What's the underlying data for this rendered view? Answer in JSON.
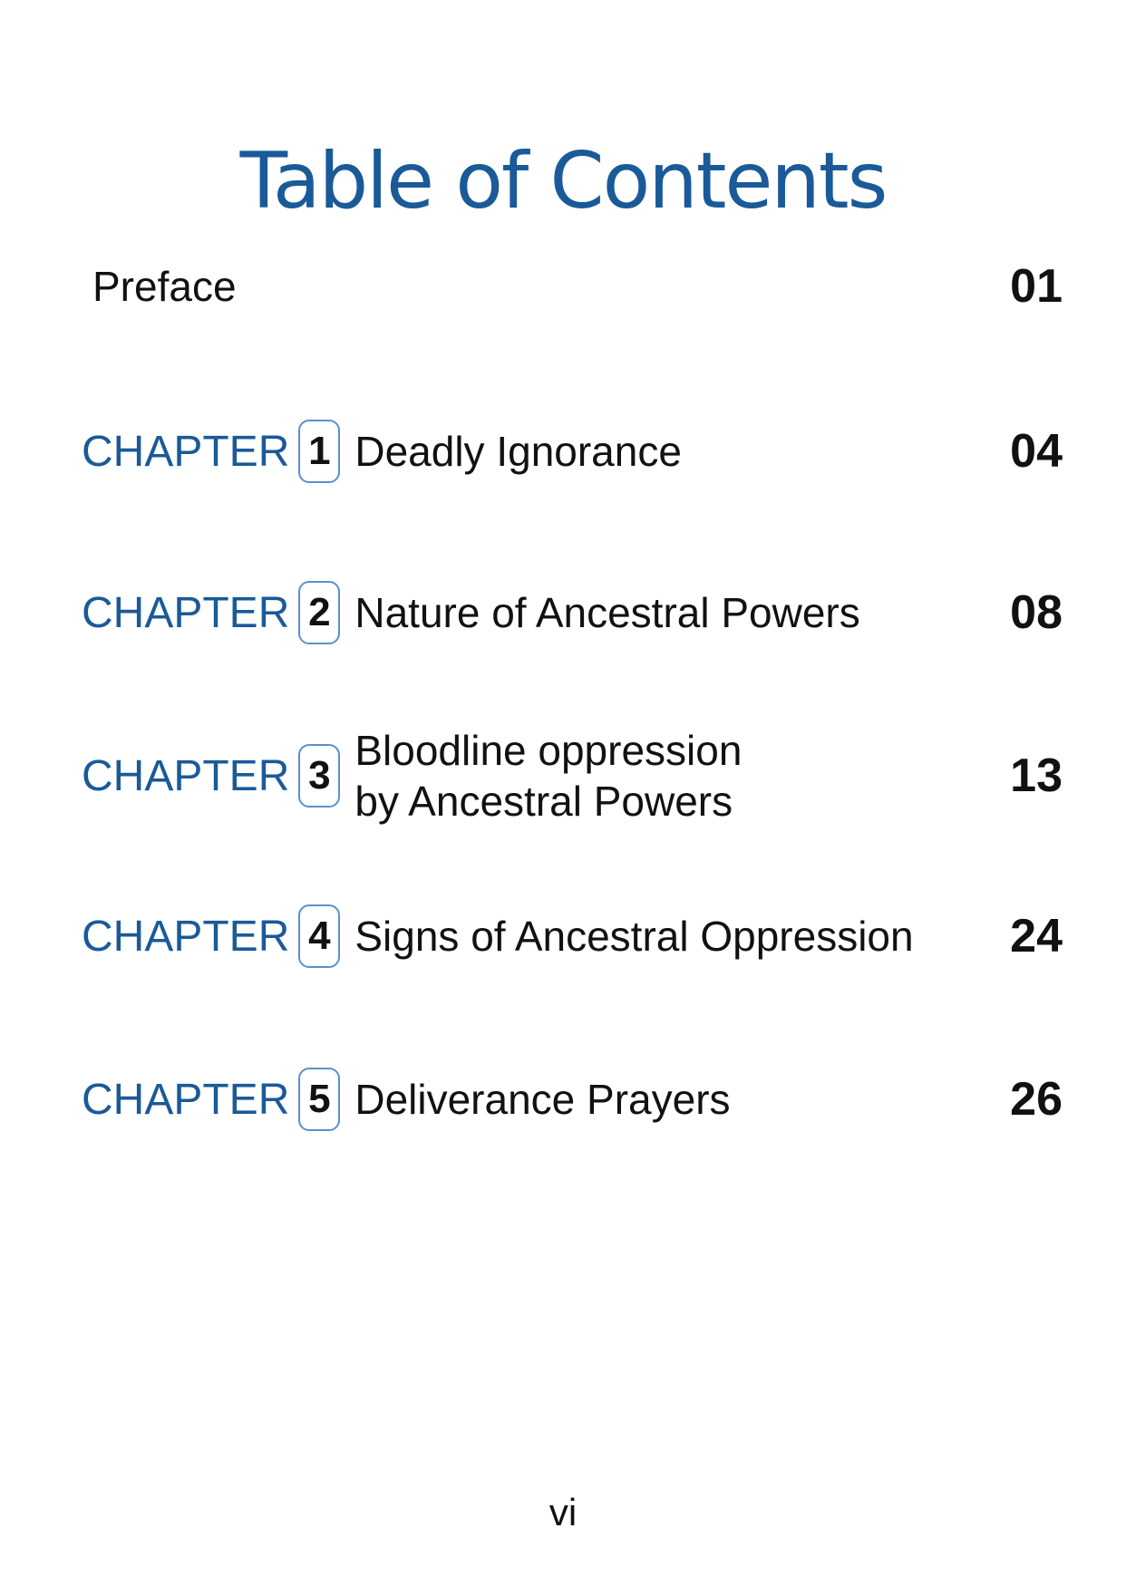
{
  "title": "Table of Contents",
  "preface": {
    "label": "Preface",
    "page": "01"
  },
  "chapter_label": "CHAPTER",
  "chapters": [
    {
      "number": "1",
      "title": "Deadly Ignorance",
      "title_line2": "",
      "page": "04"
    },
    {
      "number": "2",
      "title": "Nature of Ancestral Powers",
      "title_line2": "",
      "page": "08"
    },
    {
      "number": "3",
      "title": "Bloodline oppression",
      "title_line2": "by Ancestral Powers",
      "page": "13"
    },
    {
      "number": "4",
      "title": "Signs of Ancestral Oppression",
      "title_line2": "",
      "page": "24"
    },
    {
      "number": "5",
      "title": "Deliverance Prayers",
      "title_line2": "",
      "page": "26"
    }
  ],
  "folio": "vi",
  "colors": {
    "accent": "#1a5a98",
    "box_border": "#5b8fd0"
  }
}
